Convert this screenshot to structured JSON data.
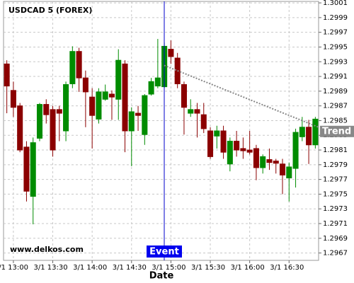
{
  "chart_data": {
    "type": "candlestick",
    "title": "USDCAD 5 (FOREX)",
    "watermark": "www.delkos.com",
    "x_label": "Date",
    "categories": [
      null,
      "3/1 13:00",
      null,
      null,
      null,
      null,
      null,
      "3/1 13:30",
      null,
      null,
      null,
      null,
      null,
      "3/1 14:00",
      null,
      null,
      null,
      null,
      null,
      "3/1 14:30",
      null,
      null,
      null,
      null,
      null,
      "3/1 15:00",
      null,
      null,
      null,
      null,
      null,
      "3/1 15:30",
      null,
      null,
      null,
      null,
      null,
      "3/1 16:00",
      null,
      null,
      null,
      null,
      null,
      "3/1 16:30",
      null,
      null,
      null,
      null
    ],
    "open": [
      1.29927,
      1.29891,
      1.2987,
      1.29814,
      1.29747,
      1.29826,
      1.29872,
      1.29865,
      1.29865,
      1.29836,
      1.299,
      1.29944,
      1.29908,
      1.29882,
      1.29852,
      1.29879,
      1.29886,
      1.29879,
      1.29927,
      1.29836,
      1.2986,
      1.29831,
      1.29886,
      1.29897,
      1.29896,
      1.29947,
      1.29935,
      1.29899,
      1.2986,
      1.29865,
      1.29858,
      1.29836,
      1.29829,
      1.29836,
      1.29791,
      1.29822,
      1.29812,
      1.2981,
      1.29812,
      1.29786,
      1.29797,
      1.29795,
      1.29791,
      1.29772,
      1.29785,
      1.29828,
      1.29841,
      1.29817
    ],
    "high": [
      1.29932,
      1.29903,
      1.29874,
      1.29822,
      1.29827,
      1.29874,
      1.29879,
      1.2987,
      1.2987,
      1.29903,
      1.29951,
      1.29949,
      1.29918,
      1.29894,
      1.29894,
      1.29899,
      1.29891,
      1.29947,
      1.29932,
      1.29868,
      1.2987,
      1.29886,
      1.29908,
      1.29961,
      1.29956,
      1.29959,
      1.29942,
      1.29903,
      1.29879,
      1.29874,
      1.29874,
      1.29841,
      1.29843,
      1.29843,
      1.29827,
      1.29836,
      1.29827,
      1.29836,
      1.29817,
      1.29804,
      1.29812,
      1.29798,
      1.29798,
      1.29793,
      1.29839,
      1.29855,
      1.29851,
      1.29855
    ],
    "low": [
      1.2986,
      1.29855,
      1.29807,
      1.2974,
      1.29709,
      1.29822,
      1.29846,
      1.29801,
      1.29822,
      1.29822,
      1.29894,
      1.29889,
      1.29841,
      1.29812,
      1.29846,
      1.29877,
      1.29851,
      1.29851,
      1.29807,
      1.29788,
      1.29836,
      1.29817,
      1.29884,
      1.29894,
      1.29894,
      1.29927,
      1.29894,
      1.29831,
      1.29855,
      1.29827,
      1.29833,
      1.29798,
      1.29812,
      1.29798,
      1.29781,
      1.29801,
      1.29798,
      1.29804,
      1.29769,
      1.29778,
      1.29783,
      1.29778,
      1.2975,
      1.2974,
      1.29759,
      1.29822,
      1.29791,
      1.29812
    ],
    "close": [
      1.29897,
      1.29868,
      1.2981,
      1.29754,
      1.2982,
      1.29872,
      1.29858,
      1.2981,
      1.2986,
      1.29899,
      1.29944,
      1.29908,
      1.29889,
      1.29857,
      1.29889,
      1.29889,
      1.29882,
      1.29932,
      1.29836,
      1.29862,
      1.29857,
      1.29884,
      1.29903,
      1.29908,
      1.29951,
      1.29937,
      1.299,
      1.29868,
      1.29865,
      1.2986,
      1.29839,
      1.29801,
      1.29836,
      1.29807,
      1.29822,
      1.2981,
      1.29809,
      1.29807,
      1.29786,
      1.29801,
      1.29793,
      1.29792,
      1.29776,
      1.29787,
      1.29834,
      1.29841,
      1.29817,
      1.29852
    ],
    "up_color": "#008c00",
    "down_color": "#8b0000",
    "ylim": [
      1.2966,
      1.30012
    ],
    "yticks": [
      1.2967,
      1.2969,
      1.2971,
      1.2973,
      1.2975,
      1.2977,
      1.2979,
      1.2981,
      1.2983,
      1.2985,
      1.2987,
      1.2989,
      1.2991,
      1.2993,
      1.2995,
      1.2997,
      1.2999,
      1.3001
    ],
    "grid": true,
    "event": {
      "label": "Event"
    },
    "trend": {
      "label": "Trend",
      "values": [
        1.29925,
        1.29841
      ],
      "color": "#888888"
    }
  }
}
